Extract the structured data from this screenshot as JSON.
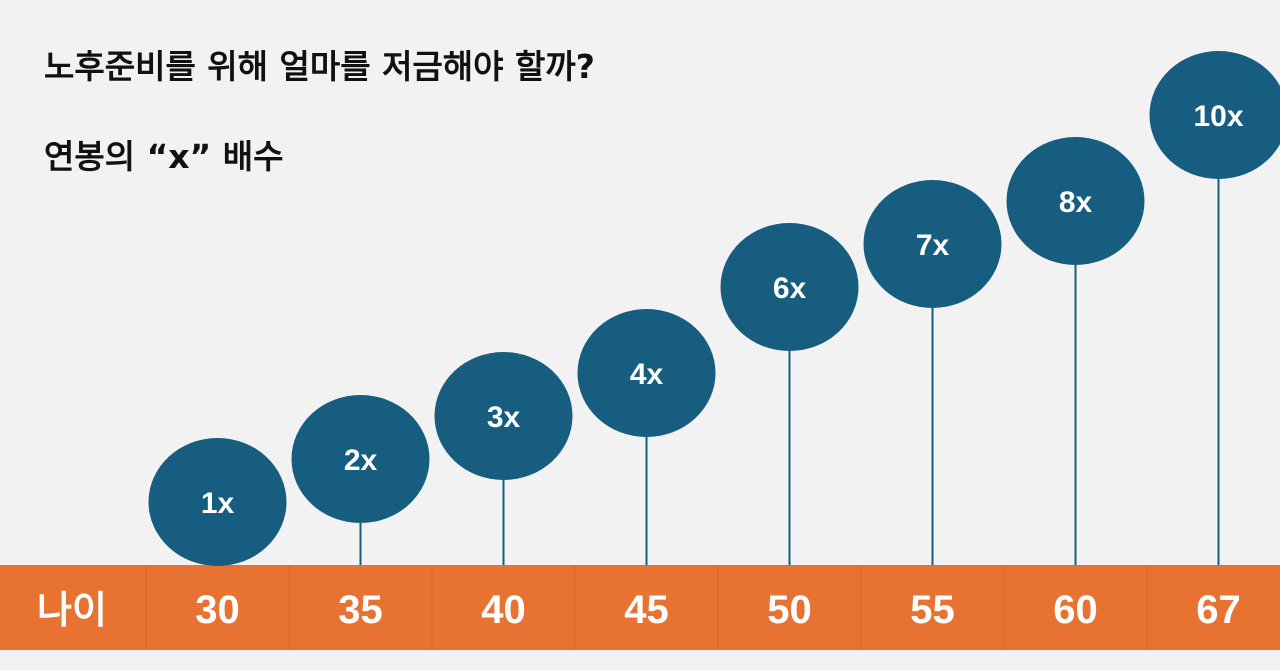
{
  "title": "노후준비를 위해 얼마를 저금해야 할까?",
  "subtitle": "연봉의 “x” 배수",
  "colors": {
    "bubble": "#175d80",
    "band": "#e87232",
    "background": "#f2f2f2",
    "text": "#111111"
  },
  "chart_data": {
    "type": "scatter",
    "xlabel": "나이",
    "categories": [
      "30",
      "35",
      "40",
      "45",
      "50",
      "55",
      "60",
      "67"
    ],
    "values": [
      1,
      2,
      3,
      4,
      6,
      7,
      8,
      10
    ],
    "labels": [
      "1x",
      "2x",
      "3x",
      "4x",
      "6x",
      "7x",
      "8x",
      "10x"
    ]
  }
}
